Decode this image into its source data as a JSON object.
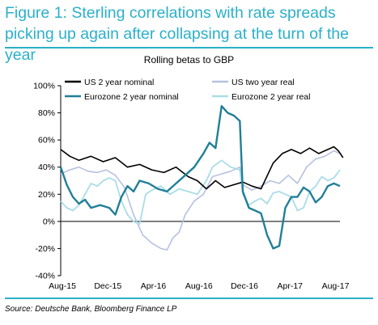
{
  "figure_title": "Figure 1: Sterling correlations with rate spreads picking up again after collapsing at the turn of the year",
  "source": "Source: Deutsche Bank, Bloomberg Finance LP",
  "colors": {
    "accent": "#2bb0c8",
    "us2y_nominal": "#000000",
    "us_real": "#b6c1e0",
    "ez2y_nominal": "#217f98",
    "ez2y_real": "#a9dde8"
  },
  "chart_data": {
    "type": "line",
    "title": "Rolling betas to GBP",
    "ylim": [
      -40,
      100
    ],
    "y_ticks": [
      "-40%",
      "-20%",
      "0%",
      "20%",
      "40%",
      "60%",
      "80%",
      "100%"
    ],
    "x_ticks": [
      "Aug-15",
      "Dec-15",
      "Apr-16",
      "Aug-16",
      "Dec-16",
      "Apr-17",
      "Aug-17"
    ],
    "legend": "top, two columns",
    "grid": false,
    "series": [
      {
        "name": "US 2 year nominal",
        "points": [
          [
            0,
            53
          ],
          [
            0.3,
            48
          ],
          [
            0.6,
            45
          ],
          [
            1,
            48
          ],
          [
            1.4,
            44
          ],
          [
            1.8,
            47
          ],
          [
            2.2,
            40
          ],
          [
            2.6,
            42
          ],
          [
            3,
            38
          ],
          [
            3.4,
            36
          ],
          [
            3.8,
            40
          ],
          [
            4.2,
            33
          ],
          [
            4.5,
            30
          ],
          [
            4.8,
            24
          ],
          [
            5.1,
            30
          ],
          [
            5.4,
            25
          ],
          [
            5.7,
            27
          ],
          [
            6,
            29
          ],
          [
            6.3,
            26
          ],
          [
            6.6,
            24
          ],
          [
            7,
            43
          ],
          [
            7.3,
            50
          ],
          [
            7.6,
            53
          ],
          [
            7.9,
            50
          ],
          [
            8.2,
            54
          ],
          [
            8.5,
            50
          ],
          [
            8.8,
            53
          ],
          [
            9,
            55
          ],
          [
            9.15,
            52
          ],
          [
            9.3,
            47
          ]
        ]
      },
      {
        "name": "US two year real",
        "points": [
          [
            0,
            35
          ],
          [
            0.3,
            38
          ],
          [
            0.6,
            40
          ],
          [
            0.9,
            37
          ],
          [
            1.2,
            36
          ],
          [
            1.5,
            38
          ],
          [
            1.8,
            34
          ],
          [
            2.1,
            25
          ],
          [
            2.4,
            5
          ],
          [
            2.7,
            -10
          ],
          [
            3,
            -16
          ],
          [
            3.3,
            -20
          ],
          [
            3.5,
            -21
          ],
          [
            3.7,
            -12
          ],
          [
            3.9,
            -8
          ],
          [
            4.1,
            5
          ],
          [
            4.4,
            15
          ],
          [
            4.7,
            20
          ],
          [
            5,
            33
          ],
          [
            5.3,
            35
          ],
          [
            5.6,
            37
          ],
          [
            5.9,
            40
          ],
          [
            6,
            27
          ],
          [
            6.3,
            23
          ],
          [
            6.6,
            26
          ],
          [
            6.9,
            30
          ],
          [
            7.2,
            28
          ],
          [
            7.5,
            34
          ],
          [
            7.8,
            28
          ],
          [
            8.1,
            40
          ],
          [
            8.4,
            46
          ],
          [
            8.7,
            48
          ],
          [
            9,
            52
          ],
          [
            9.2,
            50
          ]
        ]
      },
      {
        "name": "Eurozone 2 year nominal",
        "points": [
          [
            0,
            40
          ],
          [
            0.2,
            27
          ],
          [
            0.4,
            18
          ],
          [
            0.6,
            13
          ],
          [
            0.8,
            16
          ],
          [
            1,
            10
          ],
          [
            1.3,
            12
          ],
          [
            1.6,
            10
          ],
          [
            1.8,
            5
          ],
          [
            2,
            18
          ],
          [
            2.2,
            26
          ],
          [
            2.4,
            22
          ],
          [
            2.6,
            30
          ],
          [
            2.9,
            28
          ],
          [
            3.2,
            24
          ],
          [
            3.5,
            22
          ],
          [
            3.8,
            28
          ],
          [
            4.1,
            34
          ],
          [
            4.4,
            40
          ],
          [
            4.7,
            50
          ],
          [
            4.9,
            58
          ],
          [
            5.1,
            54
          ],
          [
            5.3,
            85
          ],
          [
            5.5,
            80
          ],
          [
            5.7,
            78
          ],
          [
            5.9,
            74
          ],
          [
            6.0,
            22
          ],
          [
            6.2,
            10
          ],
          [
            6.4,
            8
          ],
          [
            6.6,
            6
          ],
          [
            6.8,
            -10
          ],
          [
            7.0,
            -20
          ],
          [
            7.2,
            -18
          ],
          [
            7.4,
            10
          ],
          [
            7.6,
            18
          ],
          [
            7.8,
            18
          ],
          [
            8.0,
            25
          ],
          [
            8.2,
            22
          ],
          [
            8.4,
            14
          ],
          [
            8.6,
            18
          ],
          [
            8.8,
            26
          ],
          [
            9,
            28
          ],
          [
            9.2,
            26
          ]
        ]
      },
      {
        "name": "Eurozone 2 year real",
        "points": [
          [
            0,
            15
          ],
          [
            0.2,
            10
          ],
          [
            0.4,
            8
          ],
          [
            0.6,
            12
          ],
          [
            0.8,
            20
          ],
          [
            1,
            28
          ],
          [
            1.2,
            26
          ],
          [
            1.4,
            30
          ],
          [
            1.6,
            32
          ],
          [
            1.8,
            30
          ],
          [
            2,
            15
          ],
          [
            2.2,
            5
          ],
          [
            2.4,
            0
          ],
          [
            2.6,
            -2
          ],
          [
            2.8,
            20
          ],
          [
            3,
            23
          ],
          [
            3.3,
            26
          ],
          [
            3.6,
            20
          ],
          [
            3.9,
            24
          ],
          [
            4.2,
            22
          ],
          [
            4.5,
            20
          ],
          [
            4.8,
            30
          ],
          [
            5.0,
            40
          ],
          [
            5.3,
            45
          ],
          [
            5.6,
            40
          ],
          [
            5.9,
            38
          ],
          [
            6.0,
            20
          ],
          [
            6.2,
            12
          ],
          [
            6.4,
            15
          ],
          [
            6.6,
            17
          ],
          [
            6.8,
            13
          ],
          [
            7,
            21
          ],
          [
            7.2,
            22
          ],
          [
            7.4,
            20
          ],
          [
            7.6,
            18
          ],
          [
            7.8,
            8
          ],
          [
            8,
            10
          ],
          [
            8.2,
            22
          ],
          [
            8.4,
            26
          ],
          [
            8.6,
            33
          ],
          [
            8.8,
            30
          ],
          [
            9,
            32
          ],
          [
            9.2,
            38
          ]
        ]
      }
    ]
  }
}
